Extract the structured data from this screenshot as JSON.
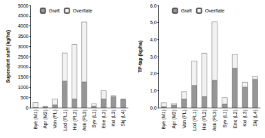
{
  "chart_data": [
    {
      "type": "bar",
      "stacked": true,
      "grid": false,
      "legend": "top",
      "y_label": "Supendert stoff (kg/ha)",
      "categories": [
        "Bye (M1)",
        "Apr (M2)",
        "Van (PL)",
        "Lod (PL1)",
        "Hol (PL2)",
        "Ask (PL3)",
        "Syv (L1)",
        "Ene (L2)",
        "Kvi (L3)",
        "Skj (L4)"
      ],
      "series": [
        {
          "name": "Grøft",
          "color": "#969696",
          "values": [
            10,
            30,
            130,
            1300,
            420,
            1250,
            60,
            420,
            530,
            400
          ]
        },
        {
          "name": "Overflate",
          "color": "#f2f2f2",
          "values": [
            250,
            40,
            300,
            1380,
            2680,
            2950,
            140,
            420,
            60,
            20
          ]
        }
      ],
      "ylim": [
        0,
        5000
      ],
      "yticks": [
        0,
        500,
        1000,
        1500,
        2000,
        2500,
        3000,
        3500,
        4000,
        4500,
        5000
      ]
    },
    {
      "type": "bar",
      "stacked": true,
      "grid": false,
      "legend": "top",
      "y_label": "TP-tap (kg/ha)",
      "categories": [
        "Bye (M1)",
        "Apr (M2)",
        "Van (PL)",
        "Lod (PL1)",
        "Hol (PL2)",
        "Ask (PL3)",
        "Syv (L1)",
        "Ene (L2)",
        "Kvi (L3)",
        "Skj (L4)"
      ],
      "series": [
        {
          "name": "Grøft",
          "color": "#969696",
          "values": [
            0.05,
            0.15,
            0.5,
            1.3,
            0.65,
            1.6,
            0.2,
            2.3,
            1.2,
            1.65
          ]
        },
        {
          "name": "Overflate",
          "color": "#f2f2f2",
          "values": [
            0.25,
            0.1,
            0.45,
            1.45,
            2.55,
            3.45,
            0.4,
            0.85,
            0.3,
            0.2
          ]
        }
      ],
      "ylim": [
        0,
        6
      ],
      "yticks": [
        {
          "value": 0,
          "label": "0,0"
        },
        {
          "value": 1,
          "label": "1,0"
        },
        {
          "value": 2,
          "label": "2,0"
        },
        {
          "value": 3,
          "label": "3,0"
        },
        {
          "value": 4,
          "label": "4,0"
        },
        {
          "value": 5,
          "label": "5,0"
        },
        {
          "value": 6,
          "label": "6,0"
        }
      ]
    }
  ]
}
